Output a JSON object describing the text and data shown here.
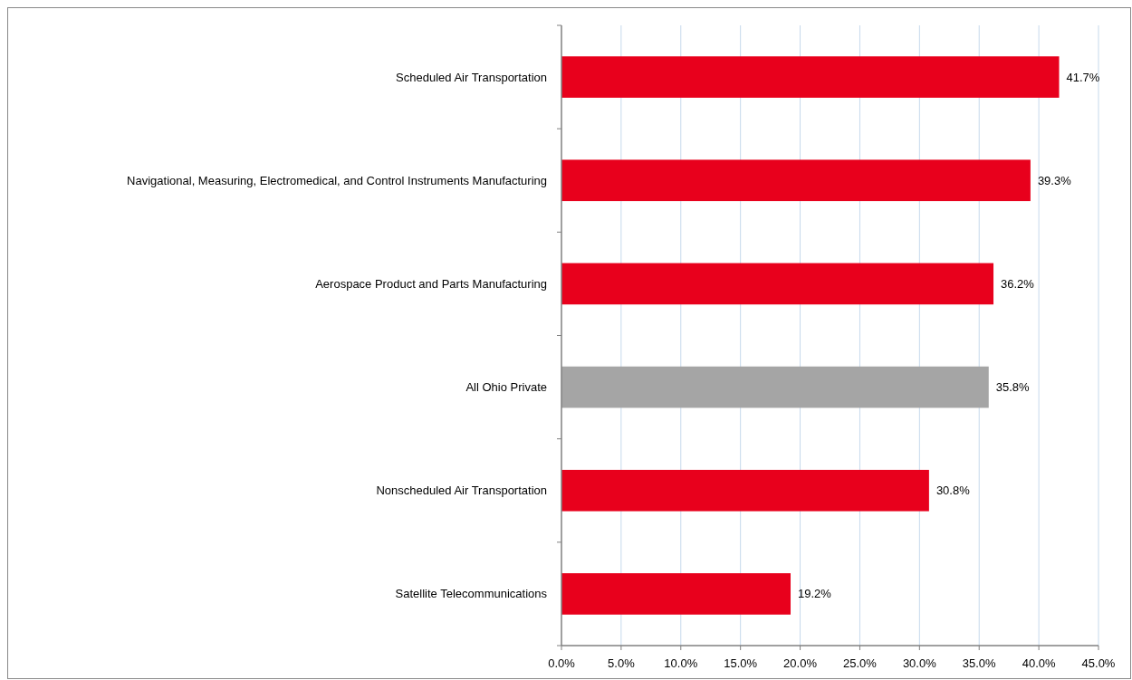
{
  "chart_data": {
    "type": "bar",
    "orientation": "horizontal",
    "categories": [
      "Scheduled Air Transportation",
      "Navigational, Measuring, Electromedical, and Control Instruments Manufacturing",
      "Aerospace Product and Parts Manufacturing",
      "All Ohio Private",
      "Nonscheduled Air Transportation",
      "Satellite Telecommunications"
    ],
    "values": [
      41.7,
      39.3,
      36.2,
      35.8,
      30.8,
      19.2
    ],
    "colors": [
      "#e8001c",
      "#e8001c",
      "#e8001c",
      "#a5a5a5",
      "#e8001c",
      "#e8001c"
    ],
    "value_labels": [
      "41.7%",
      "39.3%",
      "36.2%",
      "35.8%",
      "30.8%",
      "19.2%"
    ],
    "xlim": [
      0,
      45
    ],
    "xticks": [
      {
        "value": 0,
        "label": "0.0%"
      },
      {
        "value": 5,
        "label": "5.0%"
      },
      {
        "value": 10,
        "label": "10.0%"
      },
      {
        "value": 15,
        "label": "15.0%"
      },
      {
        "value": 20,
        "label": "20.0%"
      },
      {
        "value": 25,
        "label": "25.0%"
      },
      {
        "value": 30,
        "label": "30.0%"
      },
      {
        "value": 35,
        "label": "35.0%"
      },
      {
        "value": 40,
        "label": "40.0%"
      },
      {
        "value": 45,
        "label": "45.0%"
      }
    ],
    "grid": "x"
  }
}
